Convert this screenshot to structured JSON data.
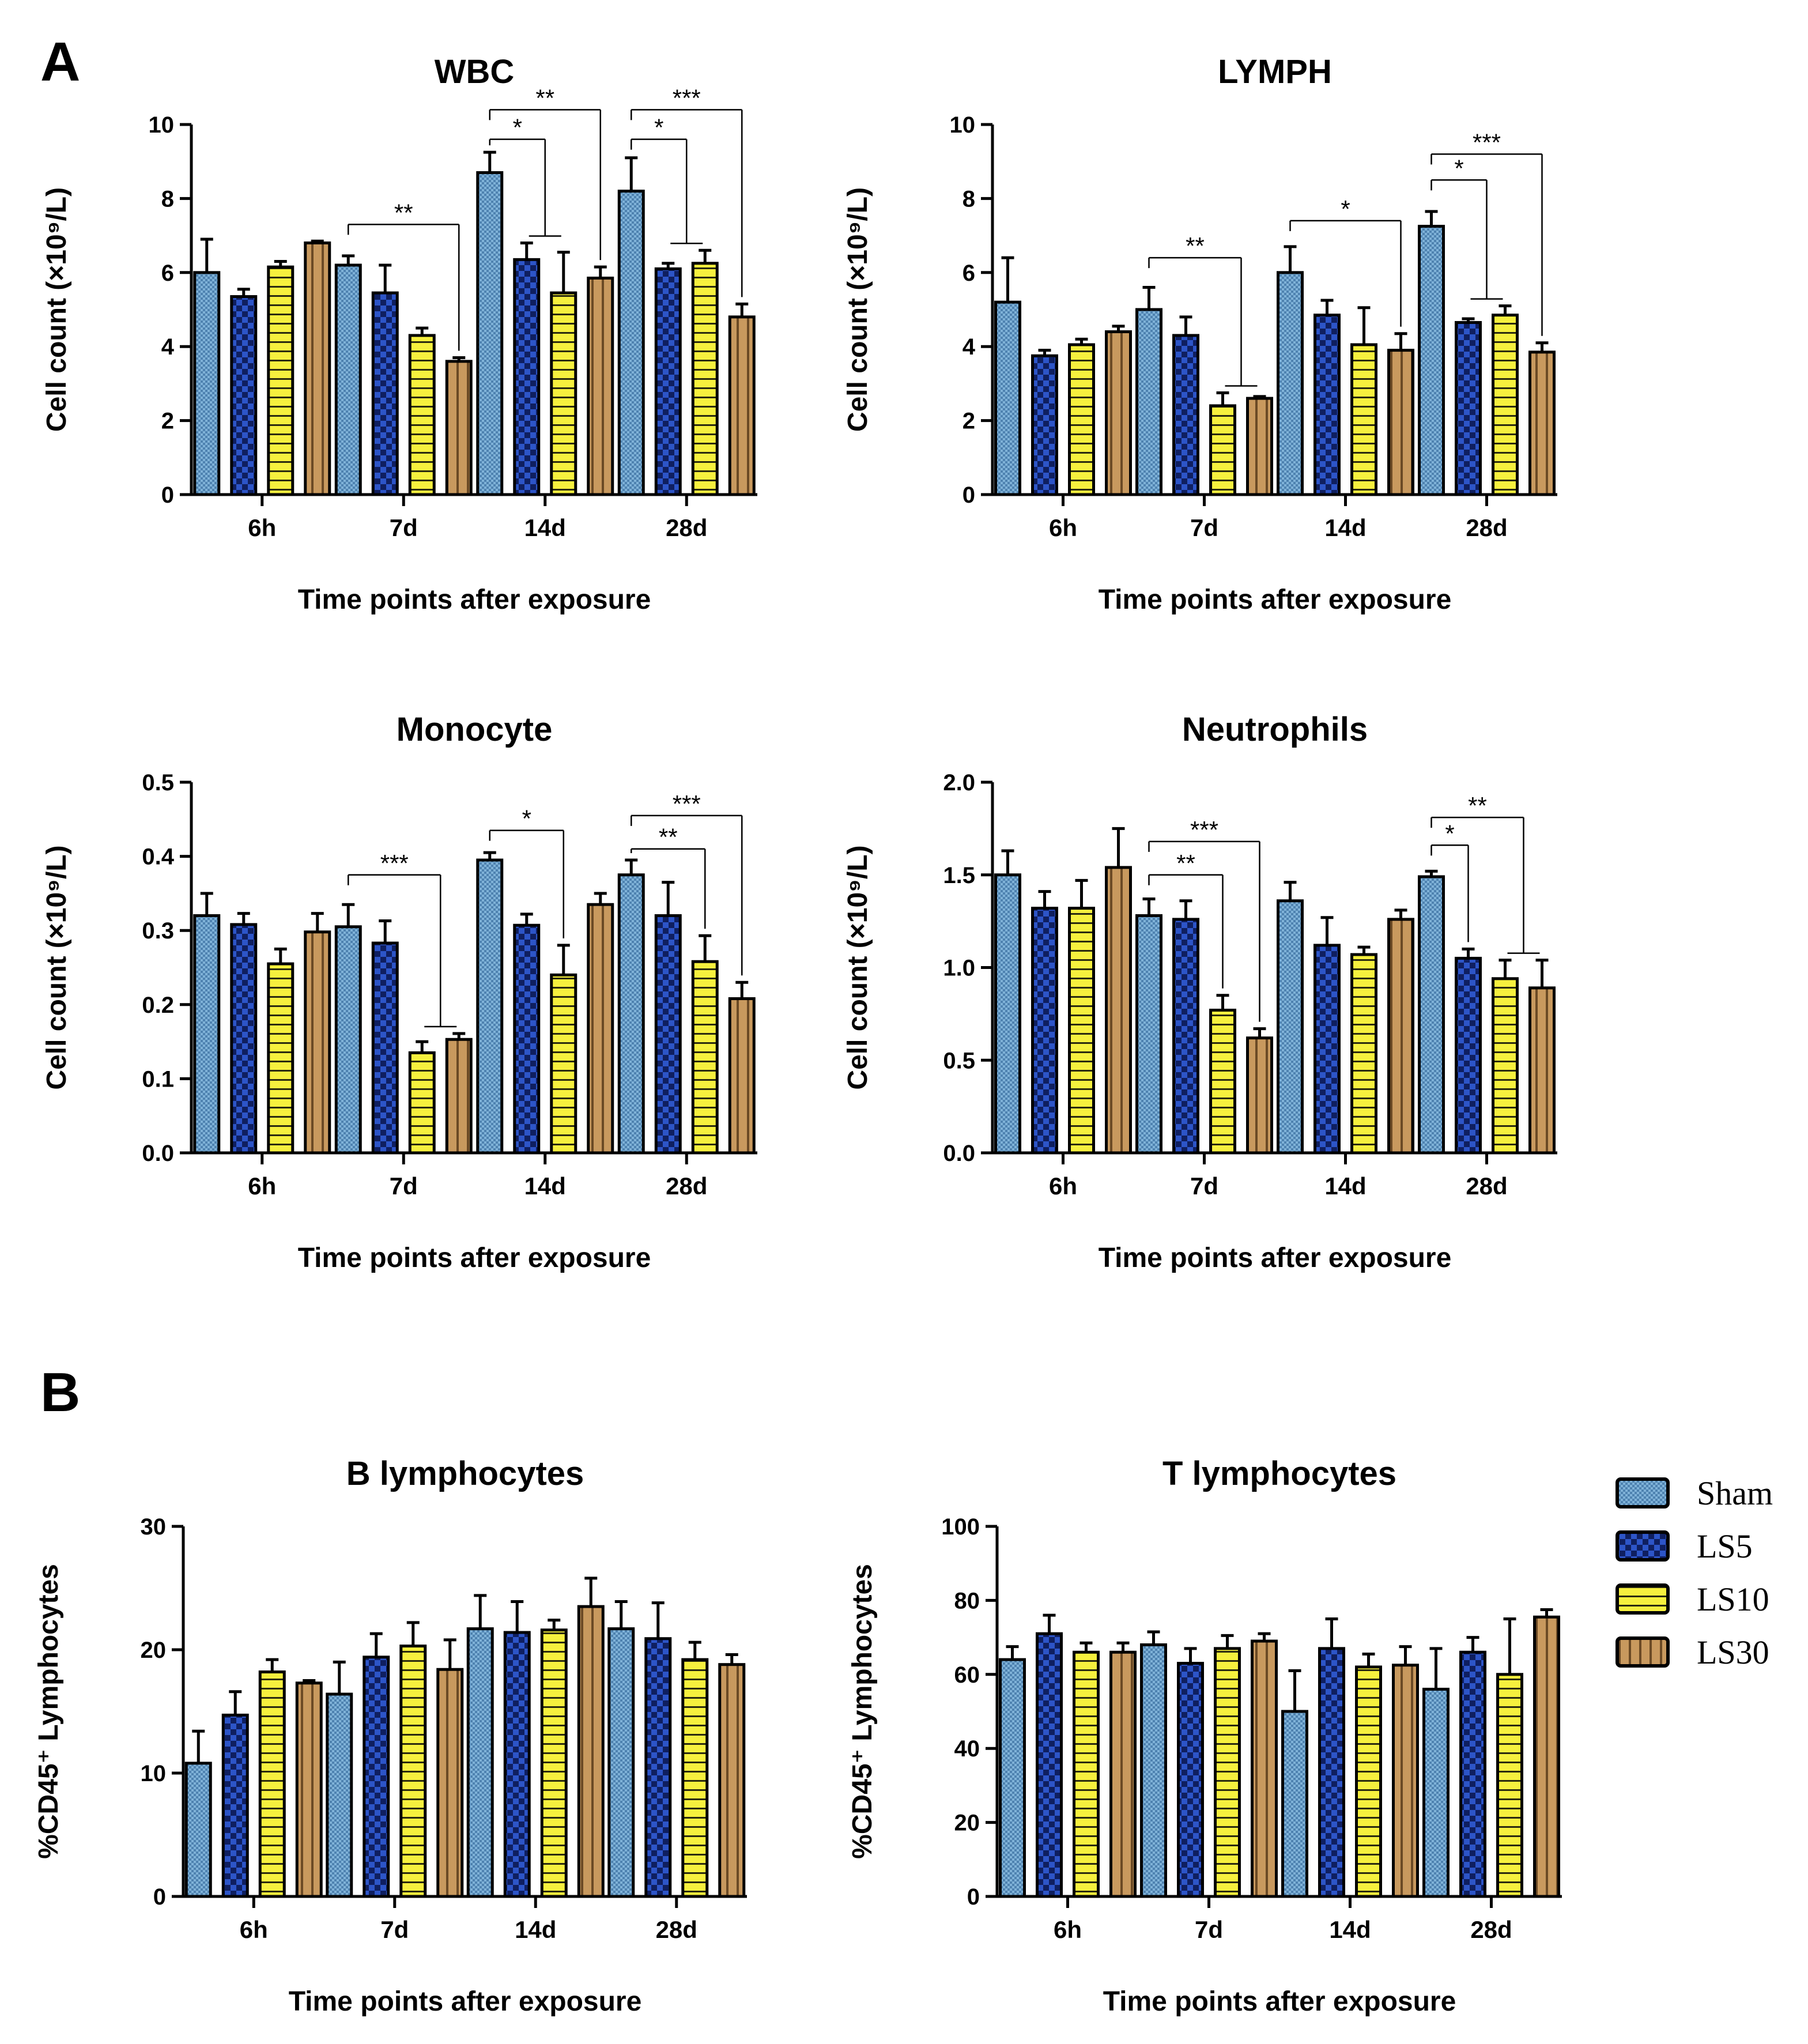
{
  "figure": {
    "panel_a_label": "A",
    "panel_b_label": "B"
  },
  "legend": [
    {
      "name": "Sham",
      "color": "#6a9fc8",
      "pattern": "check-small"
    },
    {
      "name": "LS5",
      "color": "#1e3fa6",
      "pattern": "check-large"
    },
    {
      "name": "LS10",
      "color": "#f4ee3c",
      "pattern": "horizontal-lines"
    },
    {
      "name": "LS30",
      "color": "#c0915a",
      "pattern": "vertical-lines"
    }
  ],
  "chart_data": [
    {
      "id": "wbc",
      "type": "bar",
      "title": "WBC",
      "xlabel": "Time points after exposure",
      "ylabel": "Cell count (×10⁹/L)",
      "ylim": [
        0,
        10
      ],
      "yticks": [
        "0",
        "2",
        "4",
        "6",
        "8",
        "10"
      ],
      "categories": [
        "6h",
        "7d",
        "14d",
        "28d"
      ],
      "series": [
        {
          "name": "Sham",
          "values": [
            6.0,
            6.2,
            8.7,
            8.2
          ],
          "errors": [
            0.9,
            0.25,
            0.55,
            0.9
          ]
        },
        {
          "name": "LS5",
          "values": [
            5.35,
            5.45,
            6.35,
            6.1
          ],
          "errors": [
            0.2,
            0.75,
            0.45,
            0.15
          ]
        },
        {
          "name": "LS10",
          "values": [
            6.15,
            4.3,
            5.45,
            6.25
          ],
          "errors": [
            0.15,
            0.2,
            1.1,
            0.35
          ]
        },
        {
          "name": "LS30",
          "values": [
            6.8,
            3.6,
            5.85,
            4.8
          ],
          "errors": [
            0.05,
            0.1,
            0.3,
            0.35
          ]
        }
      ],
      "significance": [
        {
          "label": "**",
          "category": "7d",
          "from": "Sham",
          "to": [
            "LS30"
          ],
          "level": 7.3
        },
        {
          "label": "*",
          "category": "14d",
          "from": "Sham",
          "to": [
            "LS5",
            "LS10"
          ],
          "level": 9.6
        },
        {
          "label": "**",
          "category": "14d",
          "from": "Sham",
          "to": [
            "LS30"
          ],
          "level": 10.4
        },
        {
          "label": "*",
          "category": "28d",
          "from": "Sham",
          "to": [
            "LS5",
            "LS10"
          ],
          "level": 9.6
        },
        {
          "label": "***",
          "category": "28d",
          "from": "Sham",
          "to": [
            "LS30"
          ],
          "level": 10.4
        }
      ]
    },
    {
      "id": "lymph",
      "type": "bar",
      "title": "LYMPH",
      "xlabel": "Time points after exposure",
      "ylabel": "Cell count (×10⁹/L)",
      "ylim": [
        0,
        10
      ],
      "yticks": [
        "0",
        "2",
        "4",
        "6",
        "8",
        "10"
      ],
      "categories": [
        "6h",
        "7d",
        "14d",
        "28d"
      ],
      "series": [
        {
          "name": "Sham",
          "values": [
            5.2,
            5.0,
            6.0,
            7.25
          ],
          "errors": [
            1.2,
            0.6,
            0.7,
            0.4
          ]
        },
        {
          "name": "LS5",
          "values": [
            3.75,
            4.3,
            4.85,
            4.65
          ],
          "errors": [
            0.15,
            0.5,
            0.4,
            0.1
          ]
        },
        {
          "name": "LS10",
          "values": [
            4.05,
            2.4,
            4.05,
            4.85
          ],
          "errors": [
            0.15,
            0.35,
            1.0,
            0.25
          ]
        },
        {
          "name": "LS30",
          "values": [
            4.4,
            2.6,
            3.9,
            3.85
          ],
          "errors": [
            0.15,
            0.05,
            0.45,
            0.25
          ]
        }
      ],
      "significance": [
        {
          "label": "**",
          "category": "7d",
          "from": "Sham",
          "to": [
            "LS10",
            "LS30"
          ],
          "level": 6.4
        },
        {
          "label": "*",
          "category": "14d",
          "from": "Sham",
          "to": [
            "LS30"
          ],
          "level": 7.4
        },
        {
          "label": "*",
          "category": "28d",
          "from": "Sham",
          "to": [
            "LS5",
            "LS10"
          ],
          "level": 8.5
        },
        {
          "label": "***",
          "category": "28d",
          "from": "Sham",
          "to": [
            "LS30"
          ],
          "level": 9.2
        }
      ]
    },
    {
      "id": "monocyte",
      "type": "bar",
      "title": "Monocyte",
      "xlabel": "Time points after exposure",
      "ylabel": "Cell count (×10⁹/L)",
      "ylim": [
        0,
        0.5
      ],
      "yticks": [
        "0.0",
        "0.1",
        "0.2",
        "0.3",
        "0.4",
        "0.5"
      ],
      "categories": [
        "6h",
        "7d",
        "14d",
        "28d"
      ],
      "series": [
        {
          "name": "Sham",
          "values": [
            0.32,
            0.305,
            0.395,
            0.375
          ],
          "errors": [
            0.03,
            0.03,
            0.01,
            0.02
          ]
        },
        {
          "name": "LS5",
          "values": [
            0.308,
            0.283,
            0.307,
            0.32
          ],
          "errors": [
            0.015,
            0.03,
            0.015,
            0.045
          ]
        },
        {
          "name": "LS10",
          "values": [
            0.255,
            0.135,
            0.24,
            0.258
          ],
          "errors": [
            0.02,
            0.015,
            0.04,
            0.035
          ]
        },
        {
          "name": "LS30",
          "values": [
            0.298,
            0.153,
            0.335,
            0.208
          ],
          "errors": [
            0.025,
            0.008,
            0.015,
            0.022
          ]
        }
      ],
      "significance": [
        {
          "label": "***",
          "category": "7d",
          "from": "Sham",
          "to": [
            "LS10",
            "LS30"
          ],
          "level": 0.375
        },
        {
          "label": "*",
          "category": "14d",
          "from": "Sham",
          "to": [
            "LS10"
          ],
          "level": 0.435
        },
        {
          "label": "**",
          "category": "28d",
          "from": "Sham",
          "to": [
            "LS10"
          ],
          "level": 0.41
        },
        {
          "label": "***",
          "category": "28d",
          "from": "Sham",
          "to": [
            "LS30"
          ],
          "level": 0.455
        }
      ]
    },
    {
      "id": "neutrophils",
      "type": "bar",
      "title": "Neutrophils",
      "xlabel": "Time points after exposure",
      "ylabel": "Cell count (×10⁹/L)",
      "ylim": [
        0,
        2.0
      ],
      "yticks": [
        "0.0",
        "0.5",
        "1.0",
        "1.5",
        "2.0"
      ],
      "categories": [
        "6h",
        "7d",
        "14d",
        "28d"
      ],
      "series": [
        {
          "name": "Sham",
          "values": [
            1.5,
            1.28,
            1.36,
            1.49
          ],
          "errors": [
            0.13,
            0.09,
            0.1,
            0.03
          ]
        },
        {
          "name": "LS5",
          "values": [
            1.32,
            1.26,
            1.12,
            1.05
          ],
          "errors": [
            0.09,
            0.1,
            0.15,
            0.05
          ]
        },
        {
          "name": "LS10",
          "values": [
            1.32,
            0.77,
            1.07,
            0.94
          ],
          "errors": [
            0.15,
            0.08,
            0.04,
            0.1
          ]
        },
        {
          "name": "LS30",
          "values": [
            1.54,
            0.62,
            1.26,
            0.89
          ],
          "errors": [
            0.21,
            0.05,
            0.05,
            0.15
          ]
        }
      ],
      "significance": [
        {
          "label": "**",
          "category": "7d",
          "from": "Sham",
          "to": [
            "LS10"
          ],
          "level": 1.5
        },
        {
          "label": "***",
          "category": "7d",
          "from": "Sham",
          "to": [
            "LS30"
          ],
          "level": 1.68
        },
        {
          "label": "*",
          "category": "28d",
          "from": "Sham",
          "to": [
            "LS5"
          ],
          "level": 1.66
        },
        {
          "label": "**",
          "category": "28d",
          "from": "Sham",
          "to": [
            "LS10",
            "LS30"
          ],
          "level": 1.81
        }
      ]
    },
    {
      "id": "b-lymphocytes",
      "type": "bar",
      "title": "B lymphocytes",
      "xlabel": "Time points after exposure",
      "ylabel": "%CD45⁺ Lymphocytes",
      "ylim": [
        0,
        30
      ],
      "yticks": [
        "0",
        "10",
        "20",
        "30"
      ],
      "categories": [
        "6h",
        "7d",
        "14d",
        "28d"
      ],
      "series": [
        {
          "name": "Sham",
          "values": [
            10.8,
            16.4,
            21.7,
            21.7
          ],
          "errors": [
            2.6,
            2.6,
            2.7,
            2.2
          ]
        },
        {
          "name": "LS5",
          "values": [
            14.7,
            19.4,
            21.4,
            20.9
          ],
          "errors": [
            1.9,
            1.9,
            2.5,
            2.9
          ]
        },
        {
          "name": "LS10",
          "values": [
            18.2,
            20.3,
            21.6,
            19.2
          ],
          "errors": [
            1.0,
            1.9,
            0.8,
            1.4
          ]
        },
        {
          "name": "LS30",
          "values": [
            17.3,
            18.4,
            23.5,
            18.8
          ],
          "errors": [
            0.2,
            2.4,
            2.3,
            0.8
          ]
        }
      ],
      "significance": []
    },
    {
      "id": "t-lymphocytes",
      "type": "bar",
      "title": "T lymphocytes",
      "xlabel": "Time points after exposure",
      "ylabel": "%CD45⁺ Lymphocytes",
      "ylim": [
        0,
        100
      ],
      "yticks": [
        "0",
        "20",
        "40",
        "60",
        "80",
        "100"
      ],
      "categories": [
        "6h",
        "7d",
        "14d",
        "28d"
      ],
      "series": [
        {
          "name": "Sham",
          "values": [
            64,
            68,
            50,
            56
          ],
          "errors": [
            3.5,
            3.5,
            11,
            11
          ]
        },
        {
          "name": "LS5",
          "values": [
            71,
            63,
            67,
            66
          ],
          "errors": [
            5,
            4,
            8,
            4
          ]
        },
        {
          "name": "LS10",
          "values": [
            66,
            67,
            62,
            60
          ],
          "errors": [
            2.5,
            3.5,
            3.5,
            15
          ]
        },
        {
          "name": "LS30",
          "values": [
            66,
            69,
            62.5,
            75.5
          ],
          "errors": [
            2.5,
            2,
            5,
            2
          ]
        }
      ],
      "significance": []
    }
  ]
}
